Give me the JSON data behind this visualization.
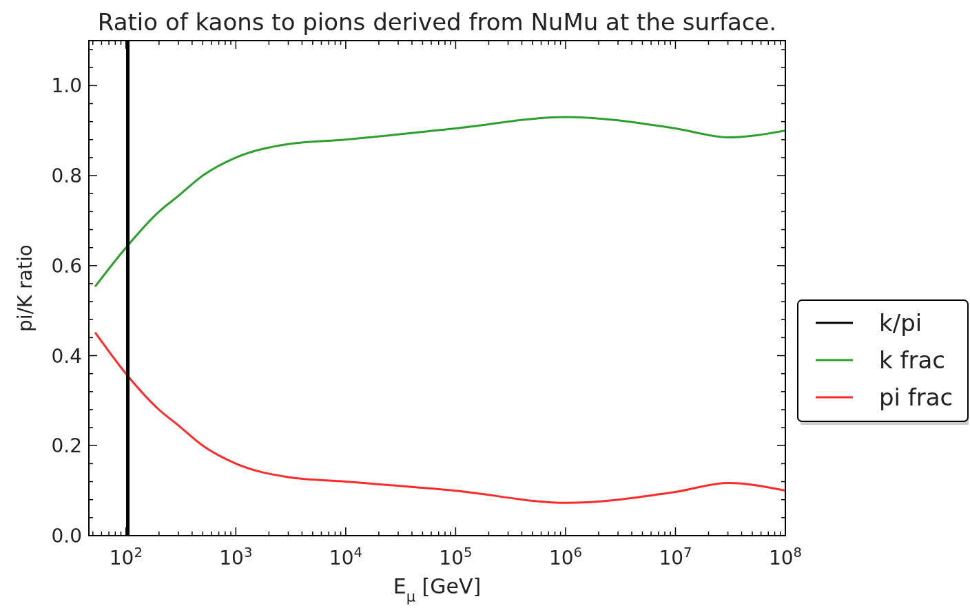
{
  "chart_data": {
    "type": "line",
    "title": "Ratio of kaons to pions derived from NuMu at the surface.",
    "xlabel": "E$_{μ}$ [GeV]",
    "ylabel": "pi/K ratio",
    "log": "x",
    "grid": false,
    "legend": "right",
    "line_style": "solid",
    "xlim": [
      46,
      100000000
    ],
    "ylim": [
      0,
      1.1
    ],
    "xticks": [
      {
        "value": 100,
        "label": "10$^{2}$"
      },
      {
        "value": 1000,
        "label": "10$^{3}$"
      },
      {
        "value": 10000,
        "label": "10$^{4}$"
      },
      {
        "value": 100000,
        "label": "10$^{5}$"
      },
      {
        "value": 1000000,
        "label": "10$^{6}$"
      },
      {
        "value": 10000000,
        "label": "10$^{7}$"
      },
      {
        "value": 100000000,
        "label": "10$^{8}$"
      },
      {
        "value": 50,
        "label": null
      },
      {
        "value": 60,
        "label": null
      },
      {
        "value": 70,
        "label": null
      },
      {
        "value": 80,
        "label": null
      },
      {
        "value": 90,
        "label": null
      },
      {
        "value": 200,
        "label": null
      },
      {
        "value": 300,
        "label": null
      },
      {
        "value": 400,
        "label": null
      },
      {
        "value": 500,
        "label": null
      },
      {
        "value": 600,
        "label": null
      },
      {
        "value": 700,
        "label": null
      },
      {
        "value": 800,
        "label": null
      },
      {
        "value": 900,
        "label": null
      },
      {
        "value": 2000,
        "label": null
      },
      {
        "value": 3000,
        "label": null
      },
      {
        "value": 4000,
        "label": null
      },
      {
        "value": 5000,
        "label": null
      },
      {
        "value": 6000,
        "label": null
      },
      {
        "value": 7000,
        "label": null
      },
      {
        "value": 8000,
        "label": null
      },
      {
        "value": 9000,
        "label": null
      },
      {
        "value": 20000,
        "label": null
      },
      {
        "value": 30000,
        "label": null
      },
      {
        "value": 40000,
        "label": null
      },
      {
        "value": 50000,
        "label": null
      },
      {
        "value": 60000,
        "label": null
      },
      {
        "value": 70000,
        "label": null
      },
      {
        "value": 80000,
        "label": null
      },
      {
        "value": 90000,
        "label": null
      },
      {
        "value": 200000,
        "label": null
      },
      {
        "value": 300000,
        "label": null
      },
      {
        "value": 400000,
        "label": null
      },
      {
        "value": 500000,
        "label": null
      },
      {
        "value": 600000,
        "label": null
      },
      {
        "value": 700000,
        "label": null
      },
      {
        "value": 800000,
        "label": null
      },
      {
        "value": 900000,
        "label": null
      },
      {
        "value": 2000000,
        "label": null
      },
      {
        "value": 3000000,
        "label": null
      },
      {
        "value": 4000000,
        "label": null
      },
      {
        "value": 5000000,
        "label": null
      },
      {
        "value": 6000000,
        "label": null
      },
      {
        "value": 7000000,
        "label": null
      },
      {
        "value": 8000000,
        "label": null
      },
      {
        "value": 9000000,
        "label": null
      },
      {
        "value": 20000000,
        "label": null
      },
      {
        "value": 30000000,
        "label": null
      },
      {
        "value": 40000000,
        "label": null
      },
      {
        "value": 50000000,
        "label": null
      },
      {
        "value": 60000000,
        "label": null
      },
      {
        "value": 70000000,
        "label": null
      },
      {
        "value": 80000000,
        "label": null
      },
      {
        "value": 90000000,
        "label": null
      }
    ],
    "yticks": [
      {
        "value": 0,
        "label": "0.0"
      },
      {
        "value": 0.2,
        "label": "0.2"
      },
      {
        "value": 0.4,
        "label": "0.4"
      },
      {
        "value": 0.6,
        "label": "0.6"
      },
      {
        "value": 0.8,
        "label": "0.8"
      },
      {
        "value": 1,
        "label": "1.0"
      },
      {
        "value": 0.04,
        "label": null
      },
      {
        "value": 0.08,
        "label": null
      },
      {
        "value": 0.12,
        "label": null
      },
      {
        "value": 0.16,
        "label": null
      },
      {
        "value": 0.24,
        "label": null
      },
      {
        "value": 0.28,
        "label": null
      },
      {
        "value": 0.32,
        "label": null
      },
      {
        "value": 0.36,
        "label": null
      },
      {
        "value": 0.44,
        "label": null
      },
      {
        "value": 0.48,
        "label": null
      },
      {
        "value": 0.52,
        "label": null
      },
      {
        "value": 0.56,
        "label": null
      },
      {
        "value": 0.64,
        "label": null
      },
      {
        "value": 0.68,
        "label": null
      },
      {
        "value": 0.72,
        "label": null
      },
      {
        "value": 0.76,
        "label": null
      },
      {
        "value": 0.84,
        "label": null
      },
      {
        "value": 0.88,
        "label": null
      },
      {
        "value": 0.92,
        "label": null
      },
      {
        "value": 0.96,
        "label": null
      },
      {
        "value": 1.04,
        "label": null
      },
      {
        "value": 1.08,
        "label": null
      }
    ],
    "x": [
      53,
      100,
      200,
      300,
      500,
      1000,
      3000,
      10000,
      100000,
      1000000,
      10000000,
      30000000,
      100000000
    ],
    "series": [
      {
        "name": "k/pi",
        "color": "#000000",
        "values": [
          null,
          null,
          null,
          null,
          null,
          null,
          null,
          null,
          null,
          null,
          null,
          null,
          null
        ]
      },
      {
        "name": "k frac",
        "color": "#2ca02c",
        "values": [
          0.555,
          0.64,
          0.72,
          0.755,
          0.8,
          0.84,
          0.87,
          0.88,
          0.905,
          0.93,
          0.905,
          0.885,
          0.9
        ]
      },
      {
        "name": "pi frac",
        "color": "#ff2a2a",
        "values": [
          0.45,
          0.36,
          0.28,
          0.245,
          0.2,
          0.16,
          0.13,
          0.12,
          0.1,
          0.073,
          0.097,
          0.117,
          0.1
        ]
      }
    ],
    "ref_lines": [
      {
        "axis": "x",
        "value": 104,
        "color": "#000000",
        "line_style": "solid"
      }
    ]
  }
}
